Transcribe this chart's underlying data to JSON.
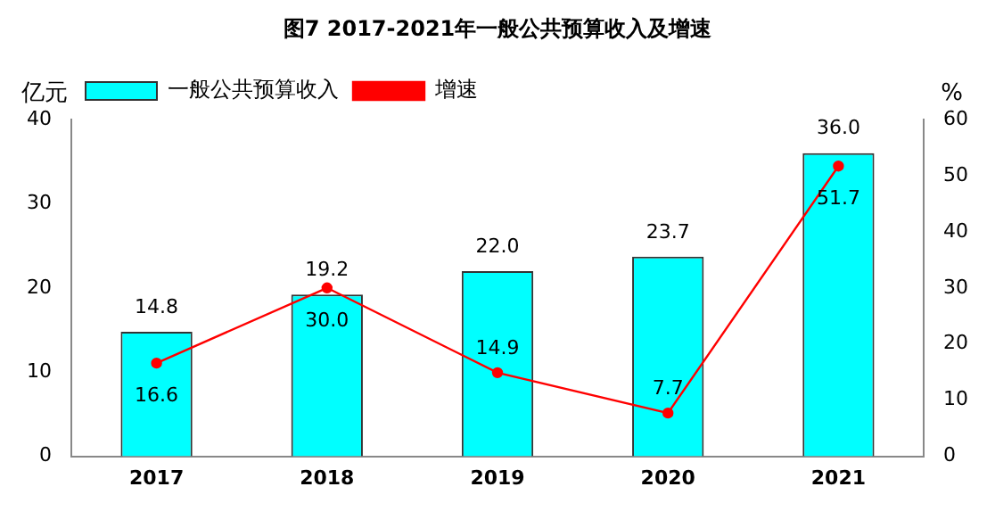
{
  "chart_data": {
    "type": "bar",
    "title": "图7 2017-2021年一般公共预算收入及增速",
    "ylabel": "亿元",
    "y2label": "%",
    "categories": [
      "2017",
      "2018",
      "2019",
      "2020",
      "2021"
    ],
    "series": [
      {
        "name": "一般公共预算收入",
        "color": "#00ffff",
        "values": [
          14.8,
          19.2,
          22.0,
          23.7,
          36.0
        ],
        "value_labels": [
          "14.8",
          "19.2",
          "22.0",
          "23.7",
          "36.0"
        ]
      },
      {
        "name": "增速",
        "type": "line",
        "axis": "y2",
        "color": "#ff0000",
        "marker": "circle",
        "values": [
          16.6,
          30.0,
          14.9,
          7.7,
          51.7
        ],
        "value_labels": [
          "16.6",
          "30.0",
          "14.9",
          "7.7",
          "51.7"
        ]
      }
    ],
    "ylim": [
      0,
      40
    ],
    "yticks": [
      0,
      10,
      20,
      30,
      40
    ],
    "y2lim": [
      0,
      60
    ],
    "y2ticks": [
      0,
      10,
      20,
      30,
      40,
      50,
      60
    ],
    "grid": false,
    "legend": "top left"
  }
}
